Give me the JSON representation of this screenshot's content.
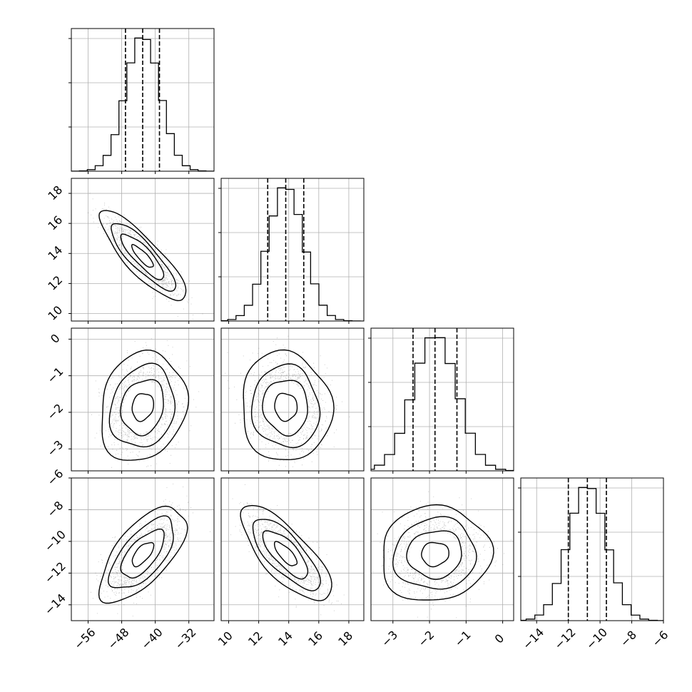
{
  "chart_data": {
    "type": "corner",
    "grid": true,
    "parameters": [
      {
        "range": [
          -60,
          -26
        ],
        "ticks": [
          -56,
          -48,
          -40,
          -32
        ],
        "tick_labels": [
          "−56",
          "−48",
          "−40",
          "−32"
        ],
        "mean": -43.0,
        "sd": 4.1,
        "quantiles": [
          -47.1,
          -43.0,
          -39.0
        ]
      },
      {
        "range": [
          9.5,
          19.0
        ],
        "ticks": [
          10,
          12,
          14,
          16,
          18
        ],
        "tick_labels": [
          "10",
          "12",
          "14",
          "16",
          "18"
        ],
        "mean": 13.8,
        "sd": 1.2,
        "quantiles": [
          12.6,
          13.8,
          15.0
        ]
      },
      {
        "range": [
          -3.6,
          0.3
        ],
        "ticks": [
          -3,
          -2,
          -1,
          0
        ],
        "tick_labels": [
          "−3",
          "−2",
          "−1",
          "0"
        ],
        "mean": -1.85,
        "sd": 0.6,
        "quantiles": [
          -2.45,
          -1.85,
          -1.25
        ]
      },
      {
        "range": [
          -15.0,
          -6.0
        ],
        "ticks": [
          -14,
          -12,
          -10,
          -8,
          -6
        ],
        "tick_labels": [
          "−14",
          "−12",
          "−10",
          "−8",
          "−6"
        ],
        "mean": -10.8,
        "sd": 1.2,
        "quantiles": [
          -12.0,
          -10.8,
          -9.6
        ]
      }
    ],
    "correlations": [
      {
        "pair": [
          0,
          1
        ],
        "rho": -0.85
      },
      {
        "pair": [
          0,
          2
        ],
        "rho": 0.15
      },
      {
        "pair": [
          0,
          3
        ],
        "rho": 0.65
      },
      {
        "pair": [
          1,
          2
        ],
        "rho": -0.05
      },
      {
        "pair": [
          1,
          3
        ],
        "rho": -0.75
      },
      {
        "pair": [
          2,
          3
        ],
        "rho": 0.05
      }
    ],
    "histogram_bins": 20,
    "contour_levels_sigma": [
      0.5,
      1.0,
      1.5,
      2.0
    ],
    "colors": {
      "line": "#000000",
      "scatter": "#000000",
      "grid": "#b0b0b0"
    }
  }
}
